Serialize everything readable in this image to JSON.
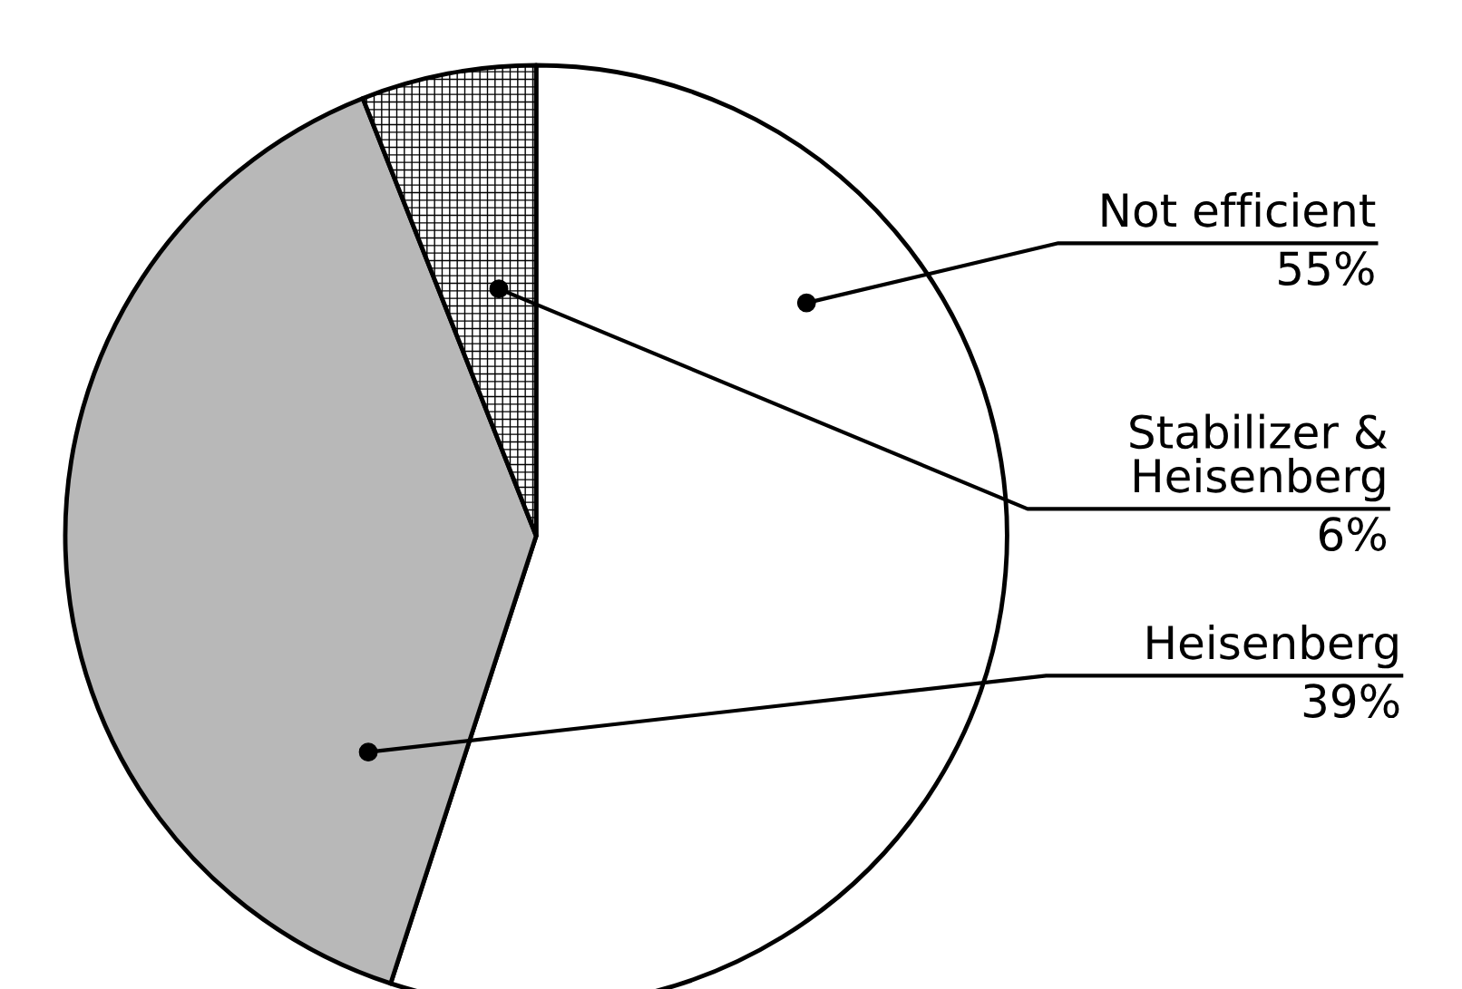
{
  "chart_data": {
    "type": "pie",
    "categories": [
      "Not efficient",
      "Heisenberg",
      "Stabilizer &\nHeisenberg"
    ],
    "values": [
      55,
      39,
      6
    ],
    "colors": [
      "#ffffff",
      "#b8b8b8",
      "#000000"
    ],
    "value_labels": [
      "55%",
      "39%",
      "6%"
    ],
    "legend": false
  }
}
